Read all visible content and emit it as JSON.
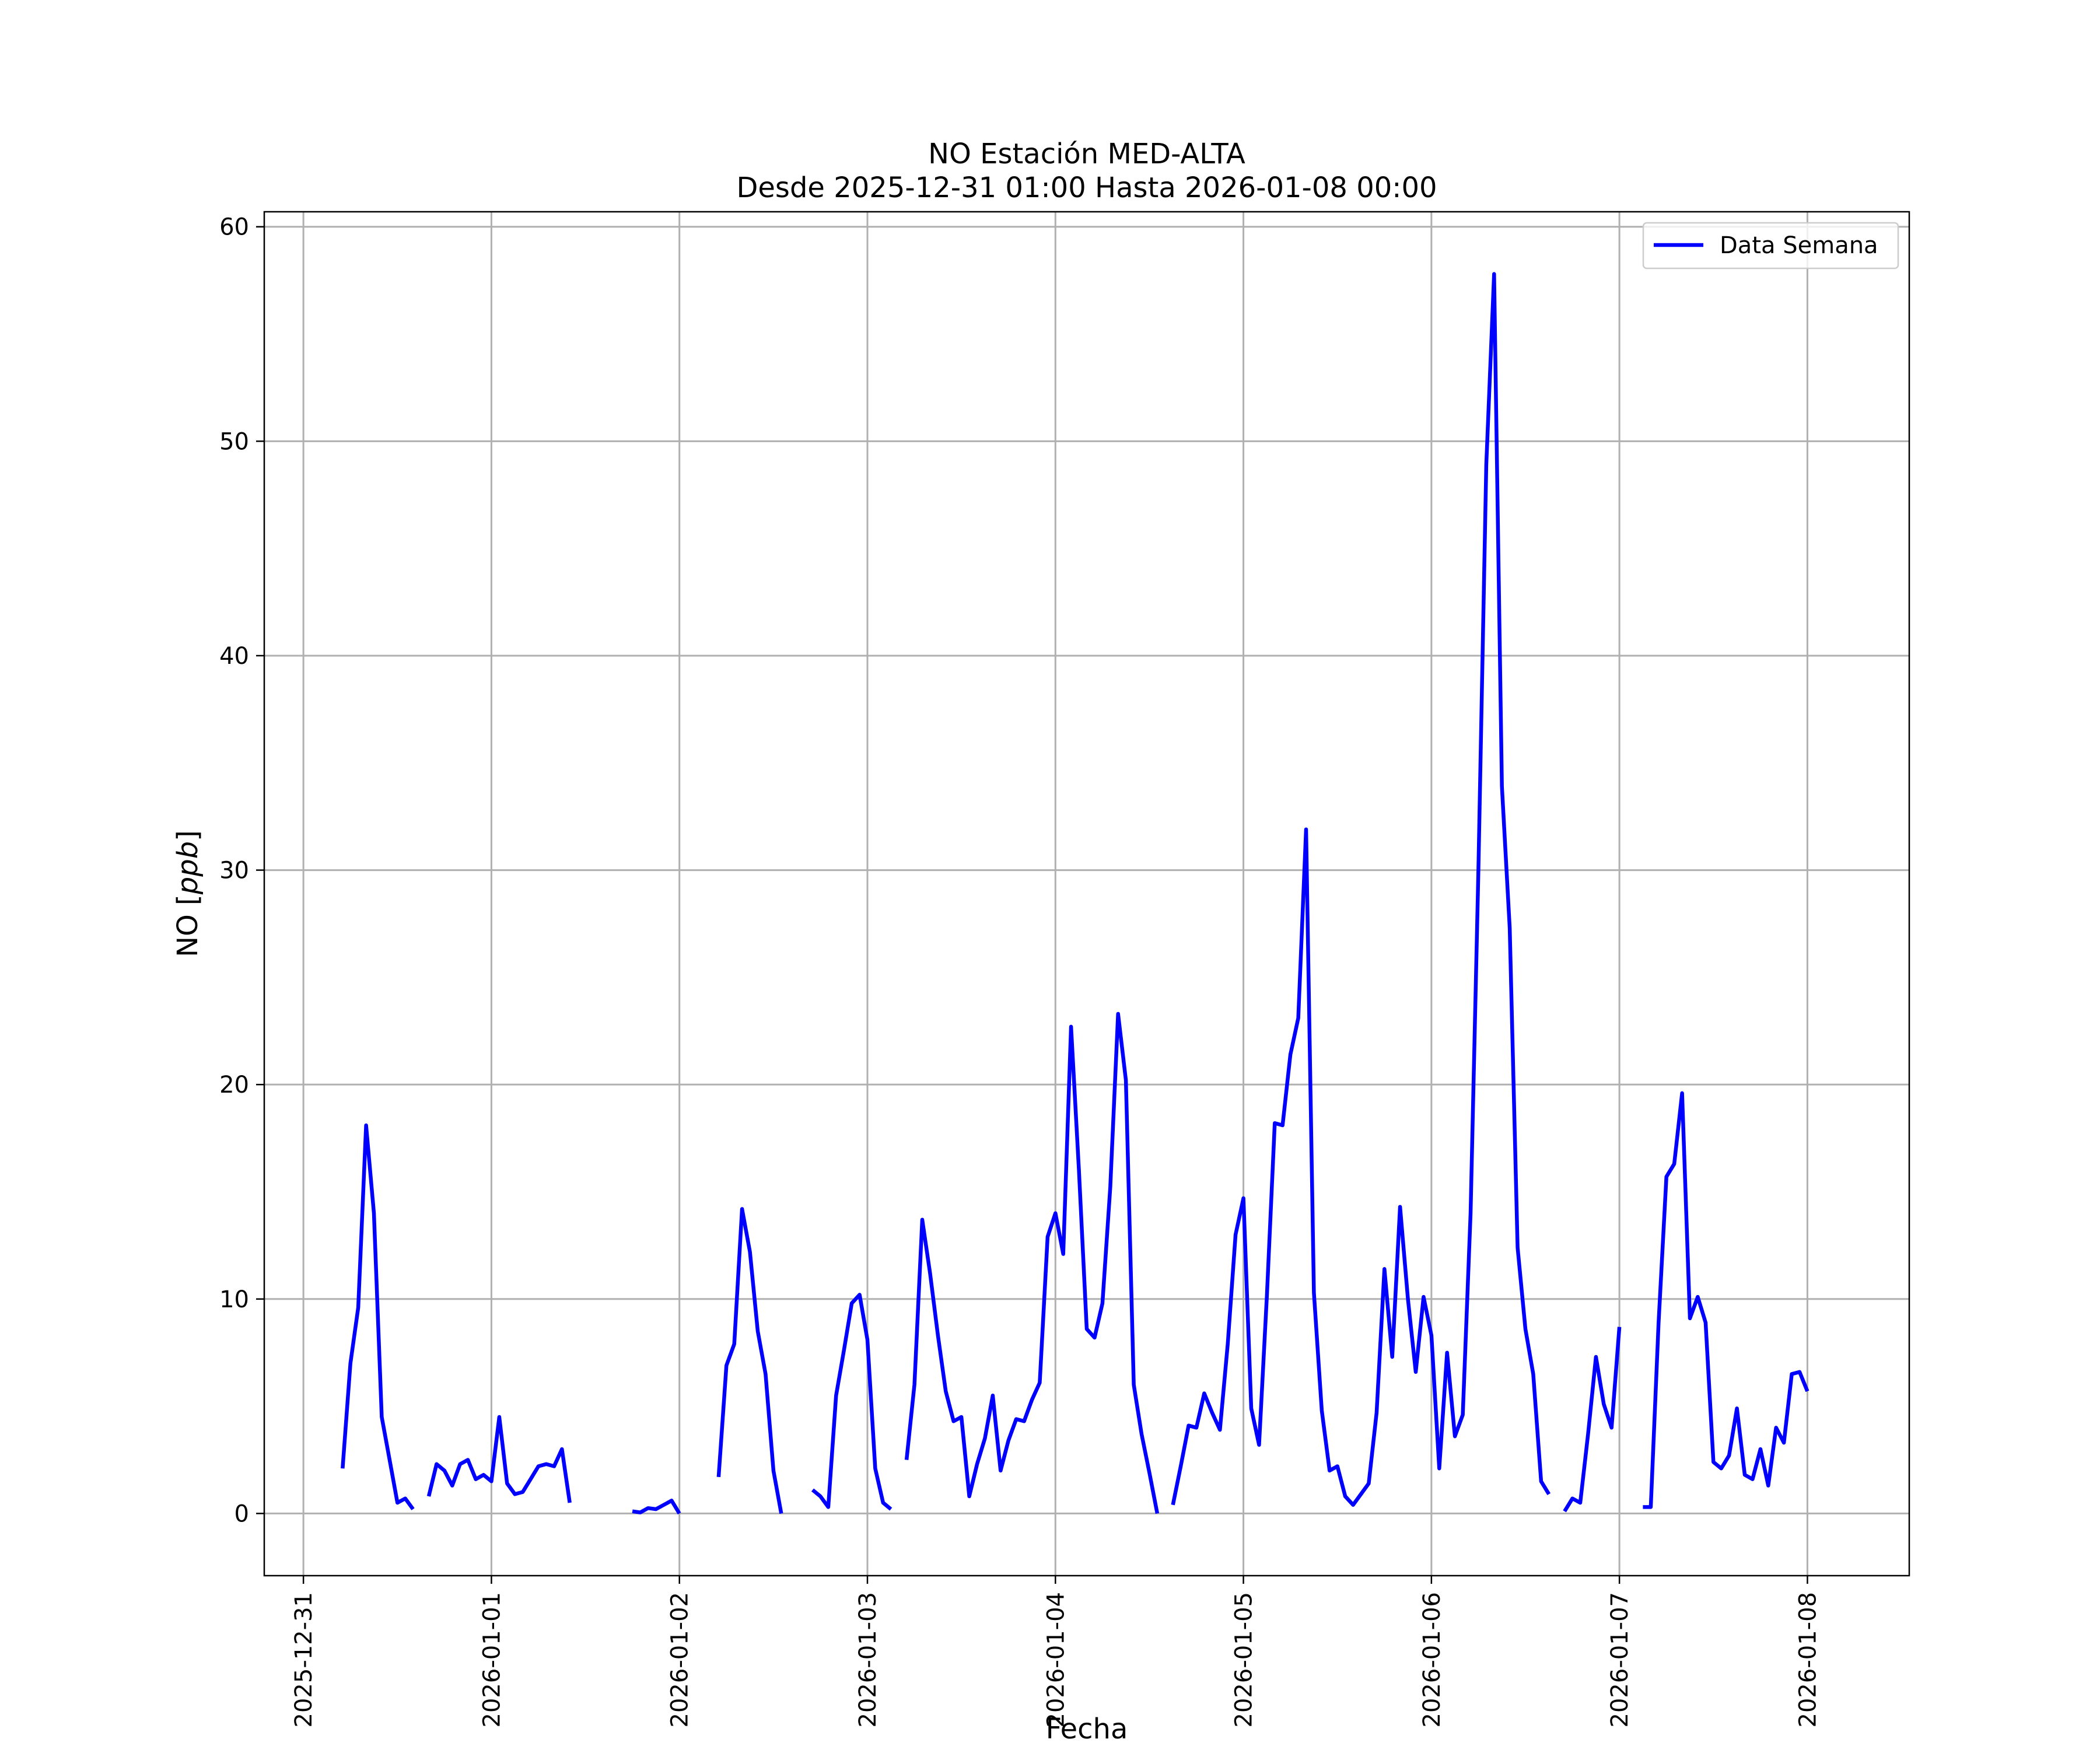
{
  "chart_data": {
    "type": "line",
    "title": "NO Estación MED-ALTA",
    "subtitle": "Desde 2025-12-31 01:00 Hasta 2026-01-08 00:00",
    "xlabel": "Fecha",
    "ylabel_prefix": "NO [",
    "ylabel_unit": "ppb",
    "ylabel_suffix": "]",
    "x_type": "datetime",
    "x_ticks": [
      "2025-12-31",
      "2026-01-01",
      "2026-01-02",
      "2026-01-03",
      "2026-01-04",
      "2026-01-05",
      "2026-01-06",
      "2026-01-07",
      "2026-01-08"
    ],
    "xlim": [
      "2025-12-30 19:00",
      "2026-01-08 13:00"
    ],
    "y_ticks": [
      0,
      10,
      20,
      30,
      40,
      50,
      60
    ],
    "ylim": [
      -2.9,
      60.7
    ],
    "grid": true,
    "legend_position": "top-right",
    "series": [
      {
        "name": "Data Semana",
        "color": "#0000ff",
        "segments": [
          [
            [
              "2025-12-31 05:00",
              2.1
            ],
            [
              "2025-12-31 06:00",
              7.0
            ],
            [
              "2025-12-31 07:00",
              9.6
            ],
            [
              "2025-12-31 08:00",
              18.1
            ],
            [
              "2025-12-31 09:00",
              14.0
            ],
            [
              "2025-12-31 10:00",
              4.5
            ],
            [
              "2025-12-31 11:00",
              2.5
            ],
            [
              "2025-12-31 12:00",
              0.5
            ],
            [
              "2025-12-31 13:00",
              0.7
            ],
            [
              "2025-12-31 14:00",
              0.2
            ]
          ],
          [
            [
              "2025-12-31 16:00",
              0.8
            ],
            [
              "2025-12-31 17:00",
              2.3
            ],
            [
              "2025-12-31 18:00",
              2.0
            ],
            [
              "2025-12-31 19:00",
              1.3
            ],
            [
              "2025-12-31 20:00",
              2.3
            ],
            [
              "2025-12-31 21:00",
              2.5
            ],
            [
              "2025-12-31 22:00",
              1.6
            ],
            [
              "2025-12-31 23:00",
              1.8
            ],
            [
              "2026-01-01 00:00",
              1.5
            ],
            [
              "2026-01-01 01:00",
              4.5
            ],
            [
              "2026-01-01 02:00",
              1.4
            ],
            [
              "2026-01-01 03:00",
              0.9
            ],
            [
              "2026-01-01 04:00",
              1.0
            ],
            [
              "2026-01-01 05:00",
              1.6
            ],
            [
              "2026-01-01 06:00",
              2.2
            ],
            [
              "2026-01-01 07:00",
              2.3
            ],
            [
              "2026-01-01 08:00",
              2.2
            ],
            [
              "2026-01-01 09:00",
              3.0
            ],
            [
              "2026-01-01 10:00",
              0.5
            ]
          ],
          [
            [
              "2026-01-01 18:00",
              0.1
            ],
            [
              "2026-01-01 19:00",
              0.05
            ],
            [
              "2026-01-01 20:00",
              0.25
            ],
            [
              "2026-01-01 21:00",
              0.2
            ],
            [
              "2026-01-01 22:00",
              0.4
            ],
            [
              "2026-01-01 23:00",
              0.6
            ],
            [
              "2026-01-02 00:00",
              0.0
            ]
          ],
          [
            [
              "2026-01-02 05:00",
              1.7
            ],
            [
              "2026-01-02 06:00",
              6.9
            ],
            [
              "2026-01-02 07:00",
              7.9
            ],
            [
              "2026-01-02 08:00",
              14.2
            ],
            [
              "2026-01-02 09:00",
              12.2
            ],
            [
              "2026-01-02 10:00",
              8.5
            ],
            [
              "2026-01-02 11:00",
              6.5
            ],
            [
              "2026-01-02 12:00",
              2.0
            ],
            [
              "2026-01-02 13:00",
              0.0
            ]
          ],
          [
            [
              "2026-01-02 17:00",
              1.1
            ],
            [
              "2026-01-02 18:00",
              0.8
            ],
            [
              "2026-01-02 19:00",
              0.3
            ],
            [
              "2026-01-02 20:00",
              5.5
            ],
            [
              "2026-01-02 21:00",
              7.6
            ],
            [
              "2026-01-02 22:00",
              9.8
            ],
            [
              "2026-01-02 23:00",
              10.2
            ],
            [
              "2026-01-03 00:00",
              8.1
            ],
            [
              "2026-01-03 01:00",
              2.1
            ],
            [
              "2026-01-03 02:00",
              0.5
            ],
            [
              "2026-01-03 03:00",
              0.2
            ]
          ],
          [
            [
              "2026-01-03 05:00",
              2.5
            ],
            [
              "2026-01-03 06:00",
              6.0
            ],
            [
              "2026-01-03 07:00",
              13.7
            ],
            [
              "2026-01-03 08:00",
              11.2
            ],
            [
              "2026-01-03 09:00",
              8.3
            ],
            [
              "2026-01-03 10:00",
              5.7
            ],
            [
              "2026-01-03 11:00",
              4.3
            ],
            [
              "2026-01-03 12:00",
              4.5
            ],
            [
              "2026-01-03 13:00",
              0.8
            ],
            [
              "2026-01-03 14:00",
              2.3
            ],
            [
              "2026-01-03 15:00",
              3.5
            ],
            [
              "2026-01-03 16:00",
              5.5
            ],
            [
              "2026-01-03 17:00",
              2.0
            ],
            [
              "2026-01-03 18:00",
              3.4
            ],
            [
              "2026-01-03 19:00",
              4.4
            ],
            [
              "2026-01-03 20:00",
              4.3
            ],
            [
              "2026-01-03 21:00",
              5.3
            ],
            [
              "2026-01-03 22:00",
              6.1
            ],
            [
              "2026-01-03 23:00",
              12.9
            ],
            [
              "2026-01-04 00:00",
              14.0
            ],
            [
              "2026-01-04 01:00",
              12.1
            ],
            [
              "2026-01-04 02:00",
              22.7
            ],
            [
              "2026-01-04 03:00",
              16.0
            ],
            [
              "2026-01-04 04:00",
              8.6
            ],
            [
              "2026-01-04 05:00",
              8.2
            ],
            [
              "2026-01-04 06:00",
              9.8
            ],
            [
              "2026-01-04 07:00",
              15.2
            ],
            [
              "2026-01-04 08:00",
              23.3
            ],
            [
              "2026-01-04 09:00",
              20.2
            ],
            [
              "2026-01-04 10:00",
              6.0
            ],
            [
              "2026-01-04 11:00",
              3.7
            ],
            [
              "2026-01-04 12:00",
              1.9
            ],
            [
              "2026-01-04 13:00",
              0.0
            ]
          ],
          [
            [
              "2026-01-04 15:00",
              0.4
            ],
            [
              "2026-01-04 16:00",
              2.2
            ],
            [
              "2026-01-04 17:00",
              4.1
            ],
            [
              "2026-01-04 18:00",
              4.0
            ],
            [
              "2026-01-04 19:00",
              5.6
            ],
            [
              "2026-01-04 20:00",
              4.7
            ],
            [
              "2026-01-04 21:00",
              3.9
            ],
            [
              "2026-01-04 22:00",
              7.9
            ],
            [
              "2026-01-04 23:00",
              13.0
            ],
            [
              "2026-01-05 00:00",
              14.7
            ],
            [
              "2026-01-05 01:00",
              4.9
            ],
            [
              "2026-01-05 02:00",
              3.2
            ],
            [
              "2026-01-05 03:00",
              10.2
            ],
            [
              "2026-01-05 04:00",
              18.2
            ],
            [
              "2026-01-05 05:00",
              18.1
            ],
            [
              "2026-01-05 06:00",
              21.4
            ],
            [
              "2026-01-05 07:00",
              23.1
            ],
            [
              "2026-01-05 08:00",
              31.9
            ],
            [
              "2026-01-05 09:00",
              10.3
            ],
            [
              "2026-01-05 10:00",
              4.8
            ],
            [
              "2026-01-05 11:00",
              2.0
            ],
            [
              "2026-01-05 12:00",
              2.2
            ],
            [
              "2026-01-05 13:00",
              0.8
            ],
            [
              "2026-01-05 14:00",
              0.4
            ],
            [
              "2026-01-05 15:00",
              0.9
            ],
            [
              "2026-01-05 16:00",
              1.4
            ],
            [
              "2026-01-05 17:00",
              4.7
            ],
            [
              "2026-01-05 18:00",
              11.4
            ],
            [
              "2026-01-05 19:00",
              7.3
            ],
            [
              "2026-01-05 20:00",
              14.3
            ],
            [
              "2026-01-05 21:00",
              10.0
            ],
            [
              "2026-01-05 22:00",
              6.6
            ],
            [
              "2026-01-05 23:00",
              10.1
            ],
            [
              "2026-01-06 00:00",
              8.3
            ],
            [
              "2026-01-06 01:00",
              2.1
            ],
            [
              "2026-01-06 02:00",
              7.5
            ],
            [
              "2026-01-06 03:00",
              3.6
            ],
            [
              "2026-01-06 04:00",
              4.6
            ],
            [
              "2026-01-06 05:00",
              14.0
            ],
            [
              "2026-01-06 06:00",
              30.0
            ],
            [
              "2026-01-06 07:00",
              48.9
            ],
            [
              "2026-01-06 08:00",
              57.8
            ],
            [
              "2026-01-06 09:00",
              33.9
            ],
            [
              "2026-01-06 10:00",
              27.3
            ],
            [
              "2026-01-06 11:00",
              12.4
            ],
            [
              "2026-01-06 12:00",
              8.6
            ],
            [
              "2026-01-06 13:00",
              6.5
            ],
            [
              "2026-01-06 14:00",
              1.5
            ],
            [
              "2026-01-06 15:00",
              0.9
            ]
          ],
          [
            [
              "2026-01-06 17:00",
              0.1
            ],
            [
              "2026-01-06 18:00",
              0.7
            ],
            [
              "2026-01-06 19:00",
              0.5
            ],
            [
              "2026-01-06 20:00",
              3.7
            ],
            [
              "2026-01-06 21:00",
              7.3
            ],
            [
              "2026-01-06 22:00",
              5.1
            ],
            [
              "2026-01-06 23:00",
              4.0
            ],
            [
              "2026-01-07 00:00",
              8.7
            ]
          ],
          [
            [
              "2026-01-07 03:00",
              0.3
            ],
            [
              "2026-01-07 04:00",
              0.3
            ],
            [
              "2026-01-07 05:00",
              8.9
            ],
            [
              "2026-01-07 06:00",
              15.7
            ],
            [
              "2026-01-07 07:00",
              16.3
            ],
            [
              "2026-01-07 08:00",
              19.6
            ],
            [
              "2026-01-07 09:00",
              9.1
            ],
            [
              "2026-01-07 10:00",
              10.1
            ],
            [
              "2026-01-07 11:00",
              8.9
            ],
            [
              "2026-01-07 12:00",
              2.4
            ],
            [
              "2026-01-07 13:00",
              2.1
            ],
            [
              "2026-01-07 14:00",
              2.7
            ],
            [
              "2026-01-07 15:00",
              4.9
            ],
            [
              "2026-01-07 16:00",
              1.8
            ],
            [
              "2026-01-07 17:00",
              1.6
            ],
            [
              "2026-01-07 18:00",
              3.0
            ],
            [
              "2026-01-07 19:00",
              1.3
            ],
            [
              "2026-01-07 20:00",
              4.0
            ],
            [
              "2026-01-07 21:00",
              3.3
            ],
            [
              "2026-01-07 22:00",
              6.5
            ],
            [
              "2026-01-07 23:00",
              6.6
            ],
            [
              "2026-01-08 00:00",
              5.7
            ]
          ]
        ]
      }
    ]
  }
}
